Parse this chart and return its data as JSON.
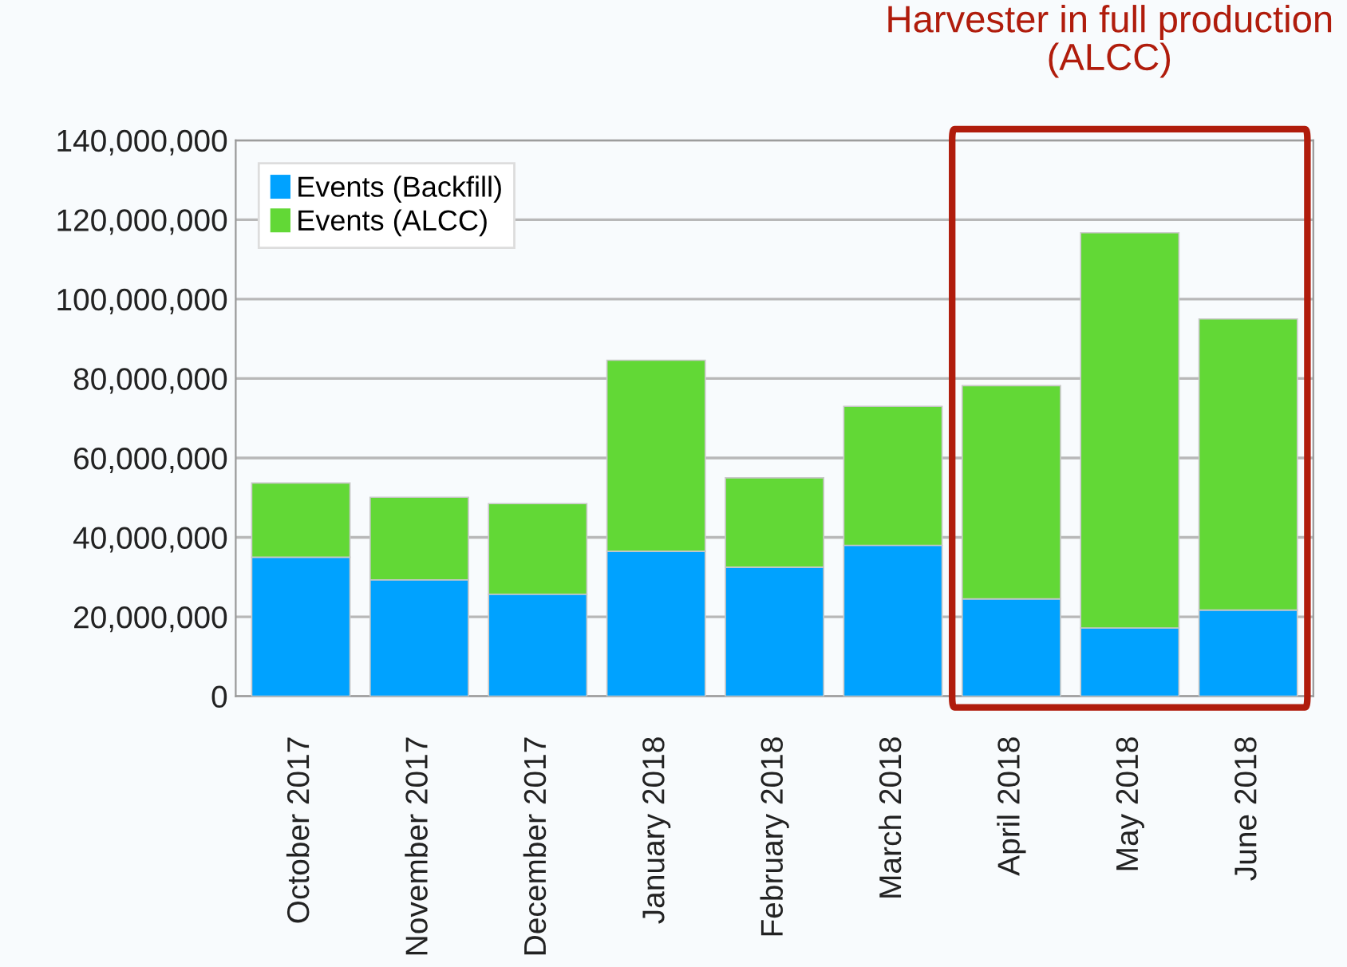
{
  "chart_data": {
    "type": "bar",
    "stacked": true,
    "categories": [
      "October 2017",
      "November 2017",
      "December 2017",
      "January 2018",
      "February 2018",
      "March 2018",
      "April 2018",
      "May 2018",
      "June 2018"
    ],
    "series": [
      {
        "name": "Events (Backfill)",
        "color": "#00a2ff",
        "values": [
          35000000,
          29300000,
          25700000,
          36500000,
          32500000,
          38000000,
          24500000,
          17200000,
          21700000
        ]
      },
      {
        "name": "Events (ALCC)",
        "color": "#62d836",
        "values": [
          18700000,
          20800000,
          22800000,
          48100000,
          22500000,
          35000000,
          53700000,
          99500000,
          73300000
        ]
      }
    ],
    "ylim": [
      0,
      140000000
    ],
    "yticks": [
      {
        "value": 0,
        "label": "0"
      },
      {
        "value": 20000000,
        "label": "20,000,000"
      },
      {
        "value": 40000000,
        "label": "40,000,000"
      },
      {
        "value": 60000000,
        "label": "60,000,000"
      },
      {
        "value": 80000000,
        "label": "80,000,000"
      },
      {
        "value": 100000000,
        "label": "100,000,000"
      },
      {
        "value": 120000000,
        "label": "120,000,000"
      },
      {
        "value": 140000000,
        "label": "140,000,000"
      }
    ],
    "grid": "y",
    "legend": "top left",
    "annotations": [
      "Harvester in full production\n(ALCC)"
    ]
  }
}
